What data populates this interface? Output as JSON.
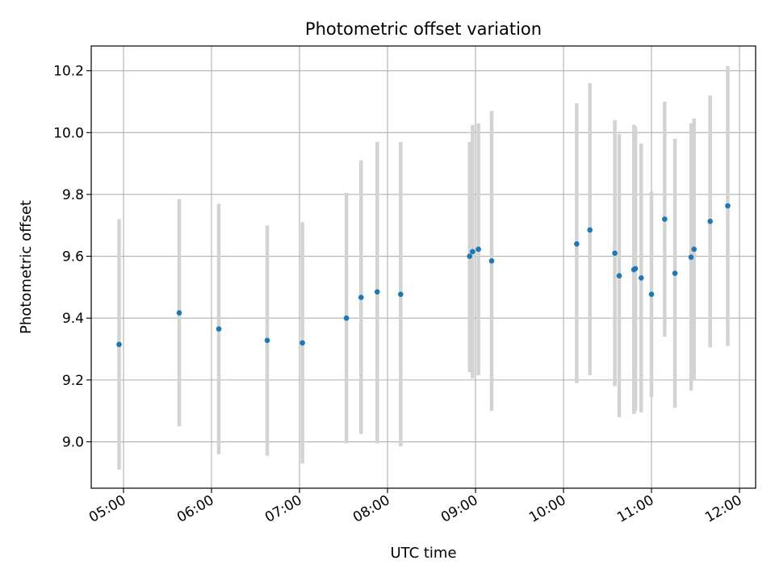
{
  "chart_data": {
    "type": "scatter",
    "title": "Photometric offset variation",
    "xlabel": "UTC time",
    "ylabel": "Photometric offset",
    "x_type": "time",
    "xlim": [
      "04:38",
      "12:11"
    ],
    "ylim": [
      8.85,
      10.28
    ],
    "xticks": [
      "05:00",
      "06:00",
      "07:00",
      "08:00",
      "09:00",
      "10:00",
      "11:00",
      "12:00"
    ],
    "yticks": [
      "9.0",
      "9.2",
      "9.4",
      "9.6",
      "9.8",
      "10.0",
      "10.2"
    ],
    "grid": true,
    "legend": "none",
    "marker_color": "#1f77b4",
    "errorbar_color": "#d3d3d3",
    "series": [
      {
        "points": [
          {
            "x": "04:57",
            "y": 9.315,
            "ylow": 8.91,
            "yhigh": 9.72
          },
          {
            "x": "05:38",
            "y": 9.417,
            "ylow": 9.05,
            "yhigh": 9.785
          },
          {
            "x": "06:05",
            "y": 9.365,
            "ylow": 8.96,
            "yhigh": 9.77
          },
          {
            "x": "06:38",
            "y": 9.328,
            "ylow": 8.955,
            "yhigh": 9.7
          },
          {
            "x": "07:02",
            "y": 9.32,
            "ylow": 8.93,
            "yhigh": 9.71
          },
          {
            "x": "07:32",
            "y": 9.4,
            "ylow": 8.995,
            "yhigh": 9.805
          },
          {
            "x": "07:42",
            "y": 9.467,
            "ylow": 9.025,
            "yhigh": 9.91
          },
          {
            "x": "07:53",
            "y": 9.485,
            "ylow": 8.995,
            "yhigh": 9.97
          },
          {
            "x": "08:09",
            "y": 9.477,
            "ylow": 8.985,
            "yhigh": 9.97
          },
          {
            "x": "08:56",
            "y": 9.6,
            "ylow": 9.225,
            "yhigh": 9.97
          },
          {
            "x": "08:58",
            "y": 9.615,
            "ylow": 9.205,
            "yhigh": 10.025
          },
          {
            "x": "09:02",
            "y": 9.623,
            "ylow": 9.215,
            "yhigh": 10.03
          },
          {
            "x": "09:11",
            "y": 9.585,
            "ylow": 9.1,
            "yhigh": 10.07
          },
          {
            "x": "10:09",
            "y": 9.64,
            "ylow": 9.19,
            "yhigh": 10.095
          },
          {
            "x": "10:18",
            "y": 9.685,
            "ylow": 9.215,
            "yhigh": 10.16
          },
          {
            "x": "10:35",
            "y": 9.61,
            "ylow": 9.18,
            "yhigh": 10.04
          },
          {
            "x": "10:38",
            "y": 9.537,
            "ylow": 9.08,
            "yhigh": 9.995
          },
          {
            "x": "10:48",
            "y": 9.557,
            "ylow": 9.09,
            "yhigh": 10.025
          },
          {
            "x": "10:49",
            "y": 9.56,
            "ylow": 9.1,
            "yhigh": 10.02
          },
          {
            "x": "10:53",
            "y": 9.53,
            "ylow": 9.095,
            "yhigh": 9.965
          },
          {
            "x": "11:00",
            "y": 9.477,
            "ylow": 9.145,
            "yhigh": 9.81
          },
          {
            "x": "11:09",
            "y": 9.72,
            "ylow": 9.34,
            "yhigh": 10.1
          },
          {
            "x": "11:16",
            "y": 9.545,
            "ylow": 9.11,
            "yhigh": 9.98
          },
          {
            "x": "11:27",
            "y": 9.597,
            "ylow": 9.165,
            "yhigh": 10.03
          },
          {
            "x": "11:29",
            "y": 9.623,
            "ylow": 9.2,
            "yhigh": 10.045
          },
          {
            "x": "11:40",
            "y": 9.713,
            "ylow": 9.305,
            "yhigh": 10.12
          },
          {
            "x": "11:52",
            "y": 9.763,
            "ylow": 9.31,
            "yhigh": 10.215
          }
        ]
      }
    ]
  }
}
